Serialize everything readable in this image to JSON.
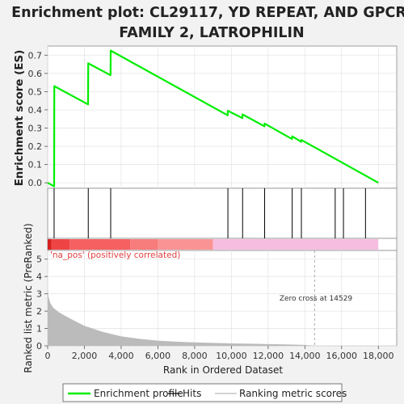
{
  "chart_data": {
    "type": "line",
    "title_line1": "Enrichment plot: CL29117, YD REPEAT, AND GPCR,",
    "title_line2": "FAMILY 2, LATROPHILIN",
    "es_panel": {
      "ylabel": "Enrichment score (ES)",
      "ylim": [
        -0.03,
        0.75
      ],
      "yticks": [
        "0.0",
        "0.1",
        "0.2",
        "0.3",
        "0.4",
        "0.5",
        "0.6",
        "0.7"
      ],
      "series": [
        {
          "name": "Enrichment profile",
          "color": "#00ee00",
          "x": [
            0,
            350,
            360,
            2200,
            2210,
            3420,
            3430,
            9800,
            9810,
            10600,
            10610,
            11800,
            11810,
            13300,
            13310,
            13800,
            13810,
            18000
          ],
          "y": [
            0.0,
            -0.02,
            0.53,
            0.43,
            0.655,
            0.59,
            0.725,
            0.37,
            0.395,
            0.355,
            0.375,
            0.31,
            0.325,
            0.24,
            0.255,
            0.225,
            0.235,
            0.0
          ]
        }
      ]
    },
    "hits": {
      "name": "Hits",
      "color": "#000000",
      "x": [
        350,
        2210,
        3430,
        9810,
        10610,
        11810,
        13310,
        13810,
        15650,
        16100,
        17300
      ]
    },
    "heat_bar": {
      "segments": [
        {
          "from": 0,
          "to": 200,
          "color": "#d42020"
        },
        {
          "from": 200,
          "to": 1200,
          "color": "#ee4444"
        },
        {
          "from": 1200,
          "to": 4500,
          "color": "#f66060"
        },
        {
          "from": 4500,
          "to": 6000,
          "color": "#f77c7c"
        },
        {
          "from": 6000,
          "to": 9000,
          "color": "#fa9494"
        },
        {
          "from": 9000,
          "to": 18000,
          "color": "#f7bde0"
        }
      ]
    },
    "metric_panel": {
      "ylabel": "Ranked list metric (PreRanked)",
      "xlabel": "Rank in Ordered Dataset",
      "ylim": [
        0,
        5.5
      ],
      "yticks": [
        "0",
        "1",
        "2",
        "3",
        "4",
        "5"
      ],
      "xlim": [
        0,
        19000
      ],
      "xticks": [
        "0",
        "2,000",
        "4,000",
        "6,000",
        "8,000",
        "10,000",
        "12,000",
        "14,000",
        "16,000",
        "18,000"
      ],
      "series": [
        {
          "name": "Ranking metric scores",
          "color": "#bbbbbb",
          "x": [
            0,
            50,
            150,
            300,
            600,
            1000,
            1500,
            2000,
            3000,
            4000,
            5000,
            6000,
            7000,
            8000,
            9000,
            10000,
            11000,
            12000,
            13000,
            14000,
            14529
          ],
          "y": [
            3.3,
            2.8,
            2.45,
            2.2,
            1.95,
            1.7,
            1.42,
            1.15,
            0.8,
            0.55,
            0.4,
            0.3,
            0.24,
            0.2,
            0.17,
            0.14,
            0.12,
            0.1,
            0.08,
            0.05,
            0.0
          ]
        }
      ],
      "zero_cross": 14529,
      "zero_cross_label": "Zero cross at 14529",
      "positive_label": "'na_pos' (positively correlated)"
    },
    "legend": {
      "items": [
        {
          "label": "Enrichment profile",
          "color": "#00ee00"
        },
        {
          "label": "Hits",
          "color": "#000000"
        },
        {
          "label": "Ranking metric scores",
          "color": "#bbbbbb"
        }
      ]
    }
  }
}
